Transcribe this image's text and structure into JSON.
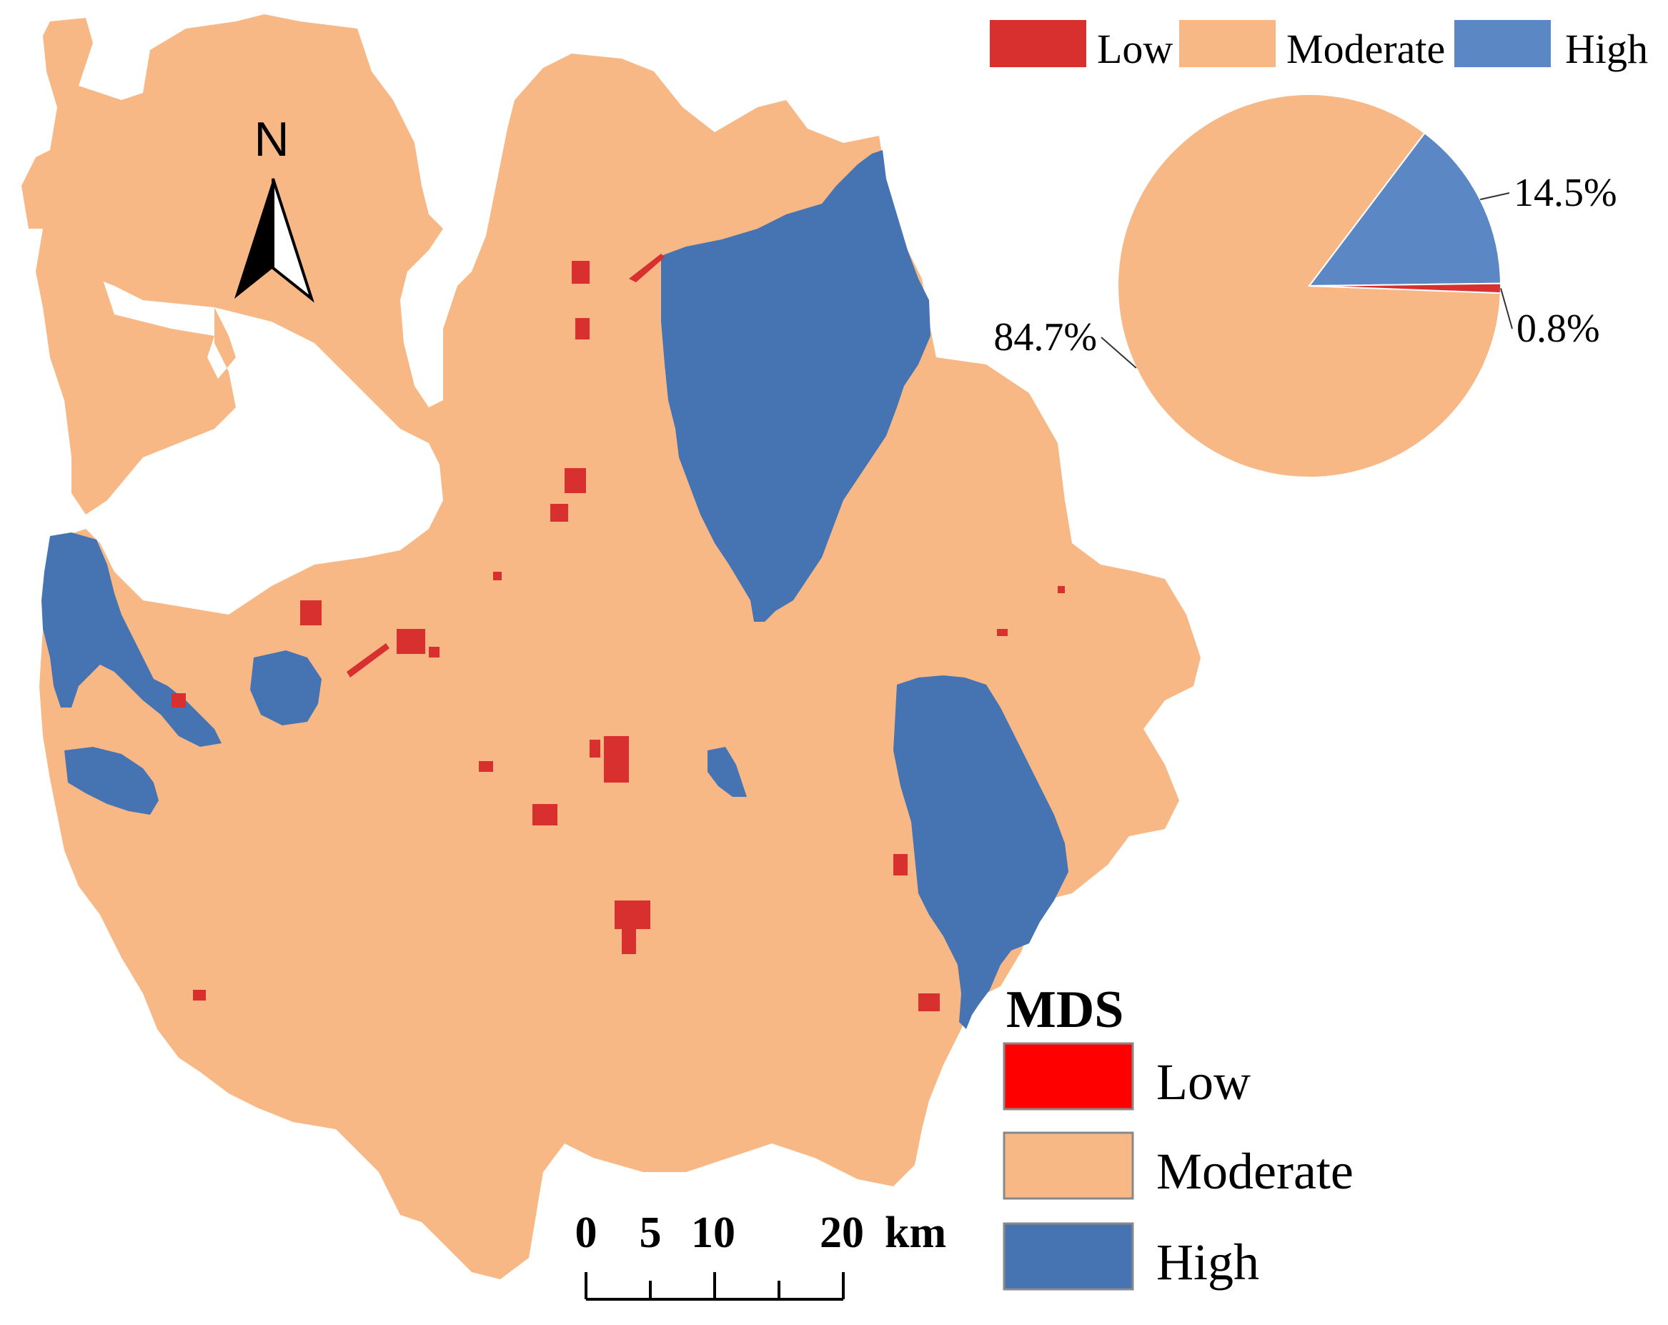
{
  "map": {
    "north_label": "N",
    "colors": {
      "low": "#d7302f",
      "moderate": "#f8b886",
      "high": "#4674b3",
      "legend_low": "#ff0000",
      "high_pie": "#5b88c5"
    }
  },
  "pie_legend": {
    "items": [
      {
        "label": "Low"
      },
      {
        "label": "Moderate"
      },
      {
        "label": "High"
      }
    ]
  },
  "chart_data": {
    "type": "pie",
    "slices": [
      {
        "category": "Moderate",
        "value": 84.7,
        "label": "84.7%"
      },
      {
        "category": "High",
        "value": 14.5,
        "label": "14.5%"
      },
      {
        "category": "Low",
        "value": 0.8,
        "label": "0.8%"
      }
    ]
  },
  "legend": {
    "title": "MDS",
    "items": [
      {
        "label": "Low"
      },
      {
        "label": "Moderate"
      },
      {
        "label": "High"
      }
    ]
  },
  "scale_bar": {
    "ticks": [
      "0",
      "5",
      "10",
      "20"
    ],
    "unit": "km"
  }
}
